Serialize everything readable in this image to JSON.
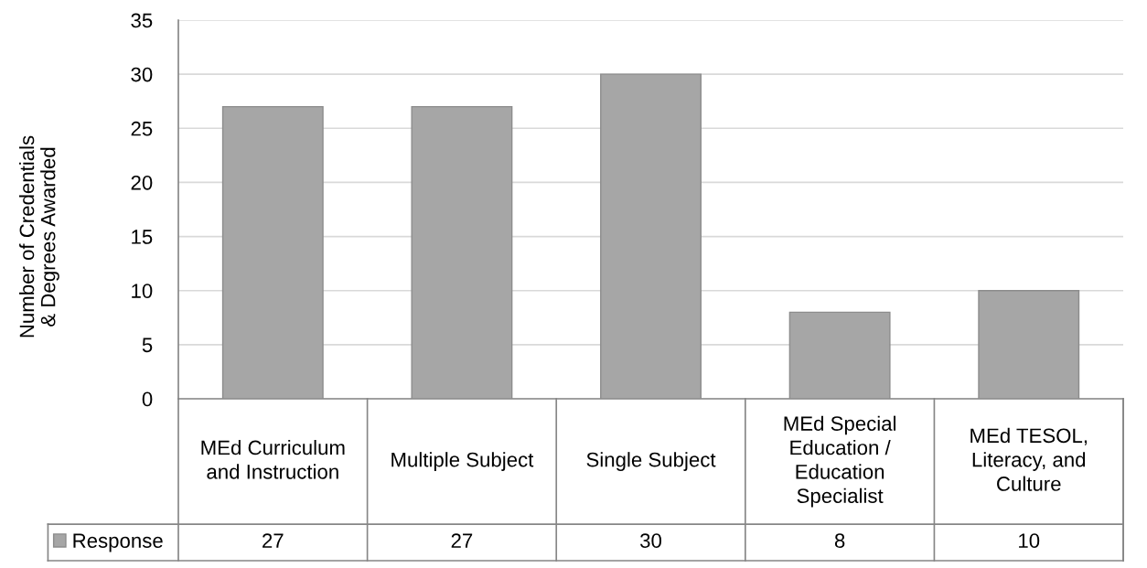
{
  "chart_data": {
    "type": "bar",
    "ylabel": "Number of Credentials\n& Degrees Awarded",
    "categories": [
      "MEd Curriculum\nand Instruction",
      "Multiple Subject",
      "Single Subject",
      "MEd Special\nEducation /\nEducation\nSpecialist",
      "MEd TESOL,\nLiteracy, and\nCulture"
    ],
    "series": [
      {
        "name": "Response",
        "color": "#a6a6a6",
        "values": [
          27,
          27,
          30,
          8,
          10
        ]
      }
    ],
    "ylim": [
      0,
      35
    ],
    "yticks": [
      0,
      5,
      10,
      15,
      20,
      25,
      30,
      35
    ],
    "grid": "y",
    "legend": "bottom left",
    "data_labels": true
  }
}
